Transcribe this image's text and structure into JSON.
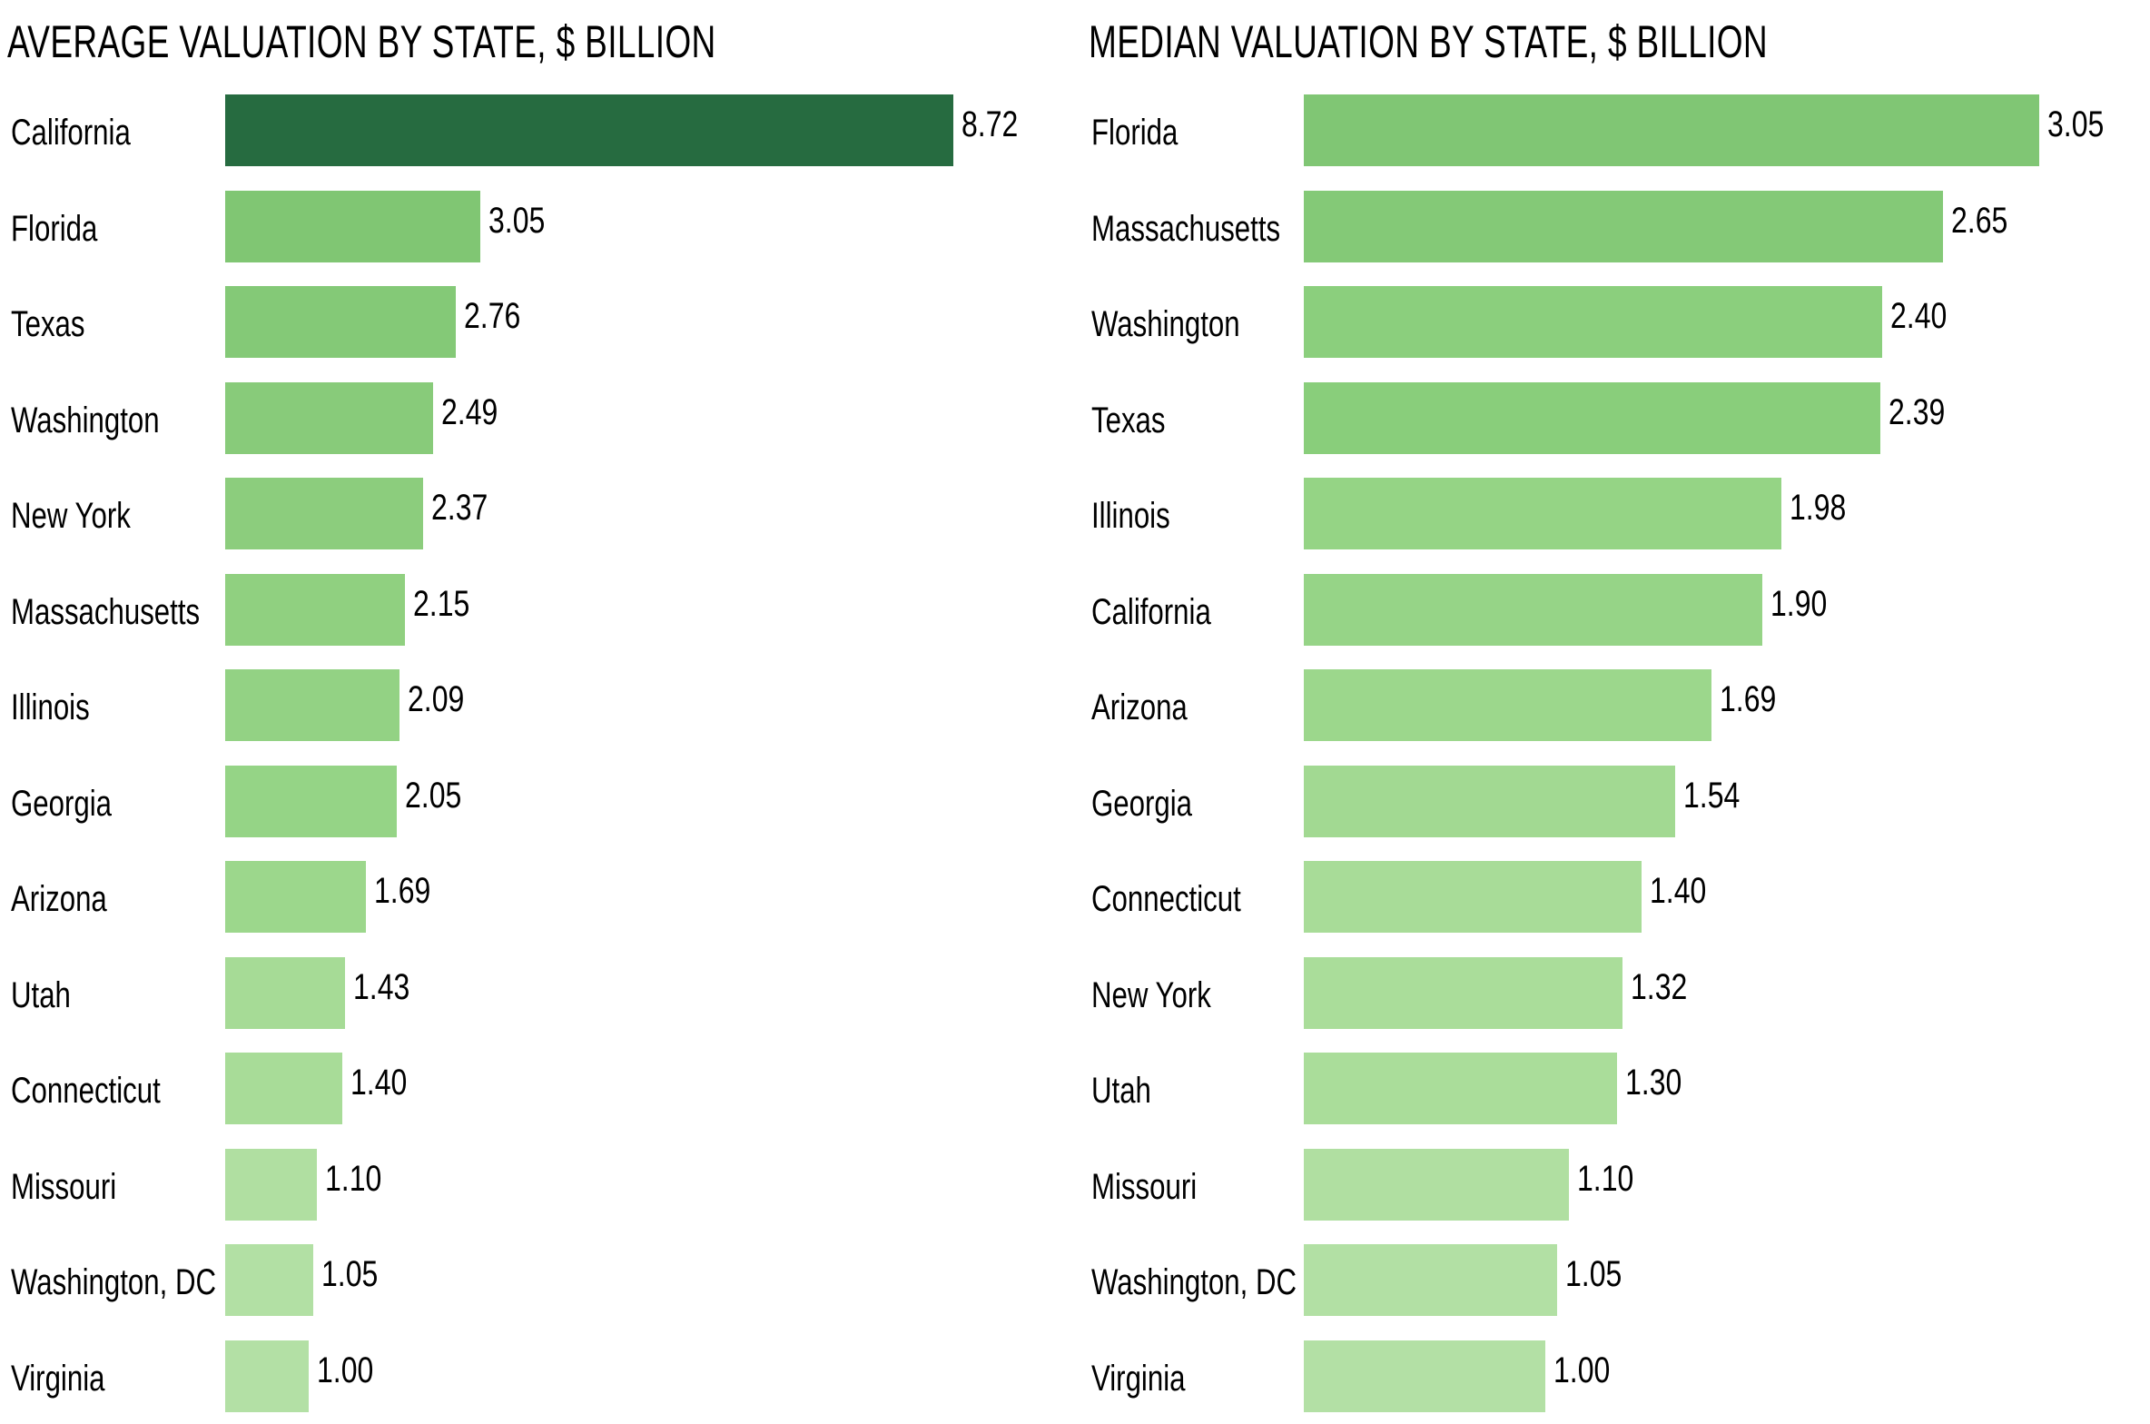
{
  "chart_data": [
    {
      "type": "bar",
      "orientation": "horizontal",
      "title": "AVERAGE VALUATION BY STATE, $ BILLION",
      "xlabel": "",
      "ylabel": "",
      "xlim": [
        0,
        8.72
      ],
      "grid": false,
      "legend": "none",
      "categories": [
        "California",
        "Florida",
        "Texas",
        "Washington",
        "New York",
        "Massachusetts",
        "Illinois",
        "Georgia",
        "Arizona",
        "Utah",
        "Connecticut",
        "Missouri",
        "Washington, DC",
        "Virginia"
      ],
      "values": [
        8.72,
        3.05,
        2.76,
        2.49,
        2.37,
        2.15,
        2.09,
        2.05,
        1.69,
        1.43,
        1.4,
        1.1,
        1.05,
        1.0
      ],
      "labels": [
        "8.72",
        "3.05",
        "2.76",
        "2.49",
        "2.37",
        "2.15",
        "2.09",
        "2.05",
        "1.69",
        "1.43",
        "1.40",
        "1.10",
        "1.05",
        "1.00"
      ],
      "colors": [
        "#266B40",
        "#80C673",
        "#84C977",
        "#88CB7A",
        "#8CCD7D",
        "#90D080",
        "#93D284",
        "#95D486",
        "#9CD78C",
        "#A6DB96",
        "#A8DC98",
        "#B0DFA1",
        "#B2E0A4",
        "#B3E0A5"
      ]
    },
    {
      "type": "bar",
      "orientation": "horizontal",
      "title": "MEDIAN VALUATION BY STATE, $ BILLION",
      "xlabel": "",
      "ylabel": "",
      "xlim": [
        0,
        3.05
      ],
      "grid": false,
      "legend": "none",
      "categories": [
        "Florida",
        "Massachusetts",
        "Washington",
        "Texas",
        "Illinois",
        "California",
        "Arizona",
        "Georgia",
        "Connecticut",
        "New York",
        "Utah",
        "Missouri",
        "Washington, DC",
        "Virginia"
      ],
      "values": [
        3.05,
        2.65,
        2.4,
        2.39,
        1.98,
        1.9,
        1.69,
        1.54,
        1.4,
        1.32,
        1.3,
        1.1,
        1.05,
        1.0
      ],
      "labels": [
        "3.05",
        "2.65",
        "2.40",
        "2.39",
        "1.98",
        "1.90",
        "1.69",
        "1.54",
        "1.40",
        "1.32",
        "1.30",
        "1.10",
        "1.05",
        "1.00"
      ],
      "colors": [
        "#80C674",
        "#84C977",
        "#8BCF7D",
        "#89CE7B",
        "#95D485",
        "#96D487",
        "#9CD78C",
        "#A2D992",
        "#A8DC98",
        "#AADD9A",
        "#AADD9A",
        "#B0DFA1",
        "#B2E0A4",
        "#B3E0A5"
      ]
    }
  ]
}
